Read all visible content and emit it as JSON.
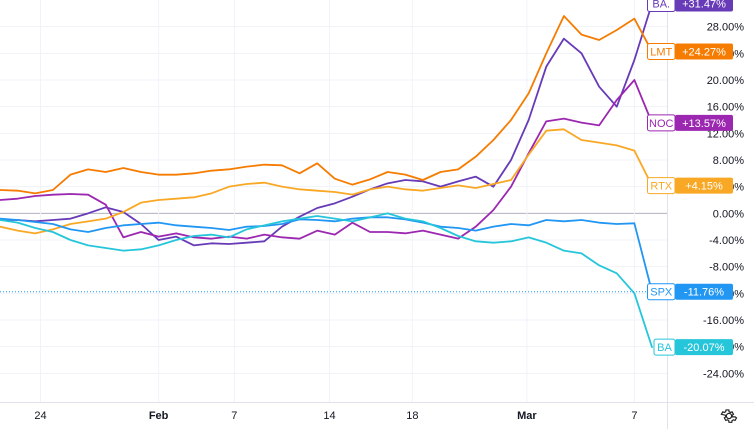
{
  "chart_data": {
    "type": "line",
    "title": "",
    "ylabel": "",
    "xlabel": "",
    "ylim": [
      -28,
      32
    ],
    "grid": true,
    "x_ticks": [
      "24",
      "Feb",
      "7",
      "14",
      "18",
      "Mar",
      "7"
    ],
    "y_ticks": [
      "28.00%",
      "24.00%",
      "20.00%",
      "16.00%",
      "12.00%",
      "8.00%",
      "4.00%",
      "0.00%",
      "-4.00%",
      "-8.00%",
      "-12.00%",
      "-16.00%",
      "-20.00%",
      "-24.00%"
    ],
    "zero_line": 0,
    "series": [
      {
        "name": "BA.",
        "label": "+31.47%",
        "color": "#673ab7",
        "values": [
          -1.0,
          -1.0,
          -1.2,
          -1.0,
          -0.8,
          0.0,
          0.9,
          0.2,
          -1.6,
          -4.0,
          -3.5,
          -4.8,
          -4.5,
          -4.6,
          -4.4,
          -4.2,
          -2.0,
          -0.5,
          0.8,
          1.5,
          2.5,
          3.6,
          4.5,
          5.0,
          4.8,
          4.0,
          4.8,
          5.5,
          4.0,
          8.0,
          14.0,
          22.0,
          26.2,
          24.0,
          19.0,
          16.0,
          23.0,
          31.47
        ]
      },
      {
        "name": "LMT",
        "label": "+24.27%",
        "color": "#f57c00",
        "values": [
          3.5,
          3.4,
          3.0,
          3.5,
          5.8,
          6.6,
          6.2,
          6.8,
          6.2,
          5.8,
          5.8,
          6.0,
          6.4,
          6.6,
          7.0,
          7.3,
          7.2,
          6.0,
          7.5,
          5.2,
          4.3,
          5.1,
          6.2,
          5.8,
          5.0,
          6.2,
          6.6,
          8.5,
          11.0,
          14.0,
          18.0,
          24.0,
          29.6,
          26.8,
          26.0,
          27.5,
          29.2,
          24.27
        ]
      },
      {
        "name": "NOC",
        "label": "+13.57%",
        "color": "#9c27b0",
        "values": [
          2.0,
          2.2,
          2.6,
          2.8,
          2.9,
          2.8,
          1.3,
          -3.6,
          -2.8,
          -3.5,
          -3.0,
          -3.6,
          -3.8,
          -3.5,
          -3.8,
          -3.2,
          -3.6,
          -3.8,
          -2.6,
          -3.2,
          -1.4,
          -2.8,
          -2.8,
          -3.0,
          -2.6,
          -3.2,
          -3.8,
          -2.0,
          0.5,
          4.0,
          9.0,
          13.8,
          14.2,
          13.6,
          13.2,
          17.0,
          20.0,
          13.57
        ]
      },
      {
        "name": "RTX",
        "label": "+4.15%",
        "color": "#f9a825",
        "values": [
          -2.0,
          -2.6,
          -3.0,
          -2.4,
          -1.6,
          -1.2,
          -0.8,
          0.2,
          1.6,
          2.0,
          2.2,
          2.4,
          3.0,
          4.0,
          4.4,
          4.6,
          4.0,
          3.6,
          3.4,
          3.2,
          2.8,
          3.6,
          4.0,
          3.6,
          3.4,
          3.8,
          4.2,
          3.8,
          4.4,
          5.0,
          8.8,
          12.4,
          12.6,
          11.0,
          10.6,
          10.2,
          9.4,
          4.15
        ]
      },
      {
        "name": "SPX",
        "label": "-11.76%",
        "color": "#2196f3",
        "values": [
          -0.8,
          -1.0,
          -1.3,
          -1.6,
          -2.4,
          -2.8,
          -2.2,
          -1.8,
          -1.6,
          -1.4,
          -1.8,
          -2.0,
          -2.2,
          -2.5,
          -2.0,
          -1.9,
          -1.6,
          -0.9,
          -1.0,
          -1.2,
          -0.8,
          -0.6,
          -0.6,
          -0.9,
          -1.4,
          -2.0,
          -2.2,
          -2.6,
          -2.0,
          -1.6,
          -1.8,
          -1.0,
          -1.2,
          -1.0,
          -1.4,
          -1.6,
          -1.5,
          -11.76
        ]
      },
      {
        "name": "BA",
        "label": "-20.07%",
        "color": "#26c6da",
        "values": [
          -1.0,
          -1.4,
          -2.2,
          -2.8,
          -4.0,
          -4.8,
          -5.2,
          -5.6,
          -5.4,
          -4.8,
          -4.0,
          -3.4,
          -3.2,
          -3.6,
          -2.4,
          -1.8,
          -1.2,
          -0.8,
          -0.4,
          -0.8,
          -1.2,
          -0.6,
          0.0,
          -0.8,
          -1.2,
          -2.2,
          -3.4,
          -4.2,
          -4.4,
          -4.2,
          -3.6,
          -4.4,
          -5.6,
          -6.0,
          -7.8,
          -9.0,
          -12.0,
          -20.07
        ]
      }
    ]
  },
  "ui": {
    "settings_icon": "gear-icon"
  }
}
